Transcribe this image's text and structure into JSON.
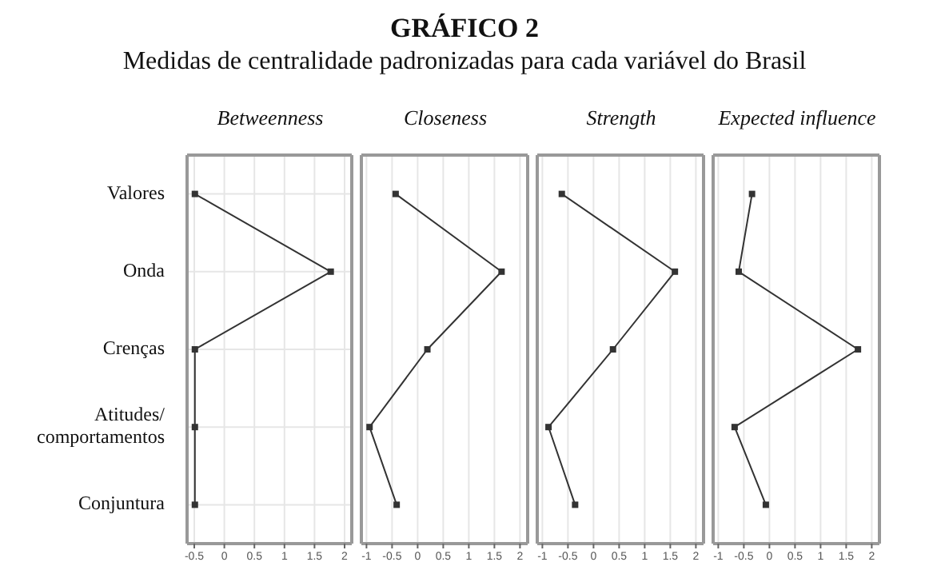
{
  "chart_data": [
    {
      "type": "line",
      "title": "Betweenness",
      "annotations": [
        "GRÁFICO 2",
        "Medidas de centralidade padronizadas para cada variável do Brasil"
      ],
      "categories": [
        "Valores",
        "Onda",
        "Crenças",
        "Atitudes/ comportamentos",
        "Conjuntura"
      ],
      "orientation": "horizontal",
      "series": [
        {
          "color": "#333333",
          "values": [
            -0.49,
            1.77,
            -0.49,
            -0.49,
            -0.49
          ]
        }
      ],
      "xlim": [
        -0.62,
        2.12
      ],
      "xticks": [
        -0.5,
        0,
        0.5,
        1,
        1.5,
        2
      ],
      "grid": true,
      "marker": "square",
      "line_style": "solid"
    },
    {
      "type": "line",
      "title": "Closeness",
      "categories": [
        null,
        null,
        null,
        null,
        null
      ],
      "orientation": "horizontal",
      "series": [
        {
          "color": "#333333",
          "values": [
            -0.43,
            1.64,
            0.19,
            -0.94,
            -0.41
          ]
        }
      ],
      "xlim": [
        -1.1,
        2.15
      ],
      "xticks": [
        -1,
        -0.5,
        0,
        0.5,
        1,
        1.5,
        2
      ],
      "grid": true,
      "marker": "square",
      "line_style": "solid",
      "tick_labels": "x"
    },
    {
      "type": "line",
      "title": "Strength",
      "categories": [
        null,
        null,
        null,
        null,
        null
      ],
      "orientation": "horizontal",
      "series": [
        {
          "color": "#333333",
          "values": [
            -0.62,
            1.59,
            0.38,
            -0.88,
            -0.36
          ]
        }
      ],
      "xlim": [
        -1.1,
        2.15
      ],
      "xticks": [
        -1,
        -0.5,
        0,
        0.5,
        1,
        1.5,
        2
      ],
      "grid": true,
      "marker": "square",
      "line_style": "solid",
      "tick_labels": "x"
    },
    {
      "type": "line",
      "title": "Expected influence",
      "categories": [
        null,
        null,
        null,
        null,
        null
      ],
      "orientation": "horizontal",
      "series": [
        {
          "color": "#333333",
          "values": [
            -0.34,
            -0.6,
            1.73,
            -0.68,
            -0.07
          ]
        }
      ],
      "xlim": [
        -1.1,
        2.15
      ],
      "xticks": [
        -1,
        -0.5,
        0,
        0.5,
        1,
        1.5,
        2
      ],
      "grid": true,
      "marker": "square",
      "line_style": "solid",
      "tick_labels": "x"
    }
  ]
}
